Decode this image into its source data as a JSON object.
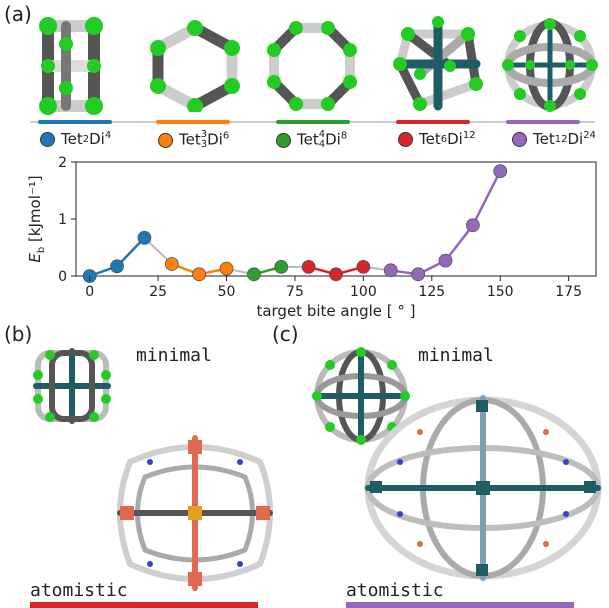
{
  "panels": {
    "a": "(a)",
    "b": "(b)",
    "c": "(c)"
  },
  "topologies": [
    {
      "key": "tet2di4",
      "base": "Tet",
      "sup1": "2",
      "sub1": "",
      "base2": "Di",
      "sup2": "4",
      "color": "#1f77b4"
    },
    {
      "key": "tet3di6",
      "base": "Tet",
      "sup1": "3",
      "sub1": "3",
      "base2": "Di",
      "sup2": "6",
      "color": "#ff7f0e"
    },
    {
      "key": "tet4di8",
      "base": "Tet",
      "sup1": "4",
      "sub1": "4",
      "base2": "Di",
      "sup2": "8",
      "color": "#2ca02c"
    },
    {
      "key": "tet6di12",
      "base": "Tet",
      "sup1": "6",
      "sub1": "",
      "base2": "Di",
      "sup2": "12",
      "color": "#d62728"
    },
    {
      "key": "tet12di24",
      "base": "Tet",
      "sup1": "12",
      "sub1": "",
      "base2": "Di",
      "sup2": "24",
      "color": "#9467bd"
    }
  ],
  "chart_data": {
    "type": "line",
    "xlabel": "target bite angle [ ° ]",
    "ylabel_main": "E",
    "ylabel_sub": "b",
    "ylabel_unit": " [kJmol⁻¹]",
    "xlim": [
      -5,
      185
    ],
    "ylim": [
      0,
      2
    ],
    "xticks": [
      0,
      25,
      50,
      75,
      100,
      125,
      150,
      175
    ],
    "yticks": [
      0,
      1,
      2
    ],
    "series": [
      {
        "topology": "tet2di4",
        "color": "#1f77b4",
        "x": [
          0,
          10,
          20
        ],
        "y": [
          0.0,
          0.17,
          0.67
        ]
      },
      {
        "topology": "tet3di6",
        "color": "#ff7f0e",
        "x": [
          30,
          40,
          50
        ],
        "y": [
          0.21,
          0.03,
          0.13
        ]
      },
      {
        "topology": "tet4di8",
        "color": "#2ca02c",
        "x": [
          60,
          70
        ],
        "y": [
          0.03,
          0.16
        ]
      },
      {
        "topology": "tet6di12",
        "color": "#d62728",
        "x": [
          80,
          90,
          100
        ],
        "y": [
          0.16,
          0.03,
          0.16
        ]
      },
      {
        "topology": "tet12di24",
        "color": "#9467bd",
        "x": [
          110,
          120,
          130,
          140,
          150
        ],
        "y": [
          0.1,
          0.03,
          0.27,
          0.89,
          1.84
        ]
      }
    ]
  },
  "captions": {
    "b_minimal": "minimal",
    "b_atomistic": "atomistic",
    "c_minimal": "minimal",
    "c_atomistic": "atomistic"
  },
  "colors": {
    "node_green": "#22cc22",
    "bond_grey": "#666666",
    "bond_white": "#dddddd",
    "center_teal": "#1f5c66"
  }
}
